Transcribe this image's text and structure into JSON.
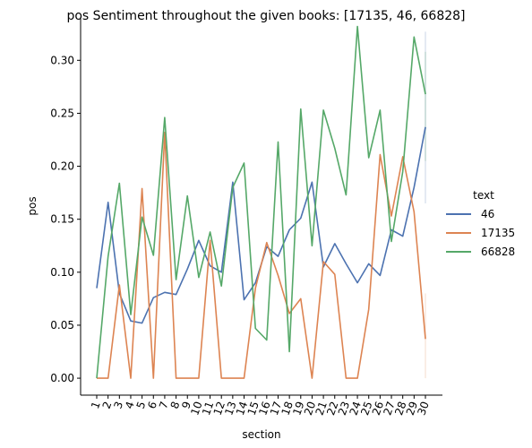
{
  "chart_data": {
    "type": "line",
    "title": "pos Sentiment throughout the given books: [17135, 46, 66828]",
    "xlabel": "section",
    "ylabel": "pos",
    "ylim": [
      -0.016,
      0.34
    ],
    "yticks": [
      "0.00",
      "0.05",
      "0.10",
      "0.15",
      "0.20",
      "0.25",
      "0.30"
    ],
    "ytick_values": [
      0.0,
      0.05,
      0.1,
      0.15,
      0.2,
      0.25,
      0.3
    ],
    "categories": [
      "1",
      "2",
      "3",
      "4",
      "5",
      "6",
      "7",
      "8",
      "9",
      "10",
      "11",
      "12",
      "13",
      "14",
      "15",
      "16",
      "17",
      "18",
      "19",
      "20",
      "21",
      "22",
      "23",
      "24",
      "25",
      "26",
      "27",
      "28",
      "29",
      "30"
    ],
    "grid": false,
    "legend": {
      "title": "text",
      "placement": "right"
    },
    "series": [
      {
        "name": "46",
        "color": "#4c72b0",
        "values": [
          0.085,
          0.166,
          0.08,
          0.054,
          0.052,
          0.076,
          0.081,
          0.079,
          0.103,
          0.13,
          0.106,
          0.1,
          0.185,
          0.074,
          0.09,
          0.124,
          0.115,
          0.14,
          0.151,
          0.185,
          0.105,
          0.127,
          0.108,
          0.09,
          0.108,
          0.097,
          0.14,
          0.134,
          0.18,
          0.237
        ]
      },
      {
        "name": "17135",
        "color": "#dd8452",
        "values": [
          0.0,
          0.0,
          0.088,
          0.0,
          0.179,
          0.0,
          0.232,
          0.0,
          0.0,
          0.0,
          0.13,
          0.0,
          0.0,
          0.0,
          0.085,
          0.128,
          0.097,
          0.061,
          0.075,
          0.0,
          0.11,
          0.098,
          0.0,
          0.0,
          0.065,
          0.211,
          0.153,
          0.209,
          0.157,
          0.037
        ]
      },
      {
        "name": "66828",
        "color": "#55a868",
        "values": [
          0.0,
          0.115,
          0.184,
          0.06,
          0.152,
          0.116,
          0.246,
          0.093,
          0.172,
          0.095,
          0.138,
          0.087,
          0.18,
          0.203,
          0.047,
          0.036,
          0.223,
          0.025,
          0.254,
          0.125,
          0.253,
          0.217,
          0.173,
          0.332,
          0.208,
          0.253,
          0.129,
          0.195,
          0.322,
          0.268
        ]
      }
    ]
  }
}
